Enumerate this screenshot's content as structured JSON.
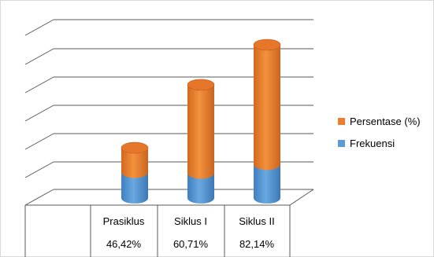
{
  "chart_data": {
    "type": "bar",
    "stacked": true,
    "style": "3d-cylinder",
    "categories": [
      "Prasiklus",
      "Siklus I",
      "Siklus II"
    ],
    "series": [
      {
        "name": "Frekuensi",
        "values": [
          13,
          17,
          23
        ],
        "color": "#5b9bd5"
      },
      {
        "name": "Persentase (%)",
        "values": [
          46.42,
          60.71,
          82.14
        ],
        "color": "#ed7d31"
      }
    ],
    "table_row": [
      "46,42%",
      "60,71%",
      "82,14%"
    ],
    "grid": true,
    "legend_position": "right"
  },
  "colors": {
    "frekuensi": "#5b9bd5",
    "persentase": "#ed7d31",
    "grid": "#595959"
  }
}
